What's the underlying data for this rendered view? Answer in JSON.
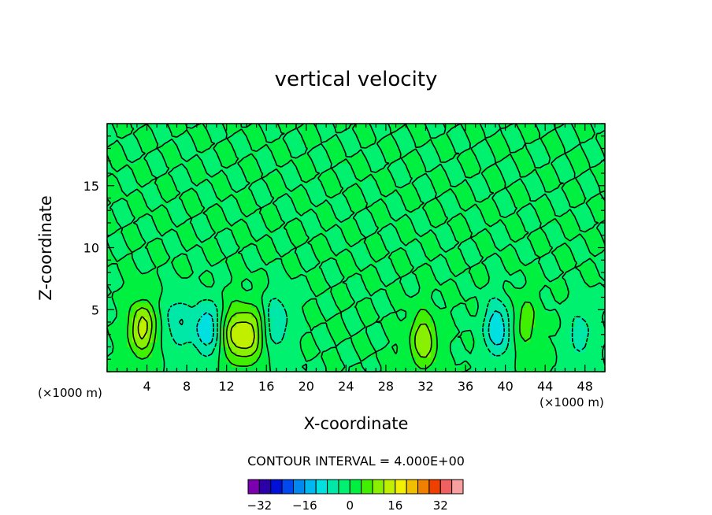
{
  "chart_data": {
    "type": "contour",
    "title": "vertical velocity",
    "xlabel": "X-coordinate",
    "ylabel": "Z-coordinate",
    "x_unit_left": "(×1000 m)",
    "x_unit_right": "(×1000 m)",
    "xlim": [
      0,
      50
    ],
    "ylim": [
      0,
      20
    ],
    "xticks": [
      4,
      8,
      12,
      16,
      20,
      24,
      28,
      32,
      36,
      40,
      44,
      48
    ],
    "yticks": [
      5,
      10,
      15
    ],
    "contour_interval_text": "CONTOUR INTERVAL = 4.000E+00",
    "contour_interval": 4,
    "colorbar_ticks": [
      -32,
      -16,
      0,
      16,
      32
    ],
    "colorbar_levels": [
      -36,
      -32,
      -28,
      -24,
      -20,
      -16,
      -12,
      -8,
      -4,
      0,
      4,
      8,
      12,
      16,
      20,
      24,
      28,
      32,
      36
    ],
    "colorbar_colors": [
      "#7a00b0",
      "#2b00a8",
      "#0010d8",
      "#0048f0",
      "#0088f0",
      "#00b8f0",
      "#00e0e0",
      "#00e8a8",
      "#00f070",
      "#00f040",
      "#40f000",
      "#88f000",
      "#c0f000",
      "#f0f000",
      "#f0c000",
      "#f08000",
      "#f04000",
      "#f06060",
      "#f8a0a0"
    ],
    "background_value": 0,
    "features": [
      {
        "kind": "updraft",
        "x": 3.5,
        "z": 3.5,
        "peak": 14
      },
      {
        "kind": "updraft",
        "x": 12.8,
        "z": 3.0,
        "peak": 12
      },
      {
        "kind": "updraft",
        "x": 14.5,
        "z": 3.0,
        "peak": 12
      },
      {
        "kind": "updraft",
        "x": 31.8,
        "z": 2.5,
        "peak": 12
      },
      {
        "kind": "updraft",
        "x": 42.0,
        "z": 4.0,
        "peak": 6
      },
      {
        "kind": "downdraft",
        "x": 7.2,
        "z": 4.0,
        "peak": -8
      },
      {
        "kind": "downdraft",
        "x": 10.0,
        "z": 3.5,
        "peak": -12
      },
      {
        "kind": "downdraft",
        "x": 17.0,
        "z": 4.0,
        "peak": -8
      },
      {
        "kind": "downdraft",
        "x": 39.2,
        "z": 3.5,
        "peak": -12
      },
      {
        "kind": "downdraft",
        "x": 47.5,
        "z": 3.0,
        "peak": -6
      }
    ]
  }
}
